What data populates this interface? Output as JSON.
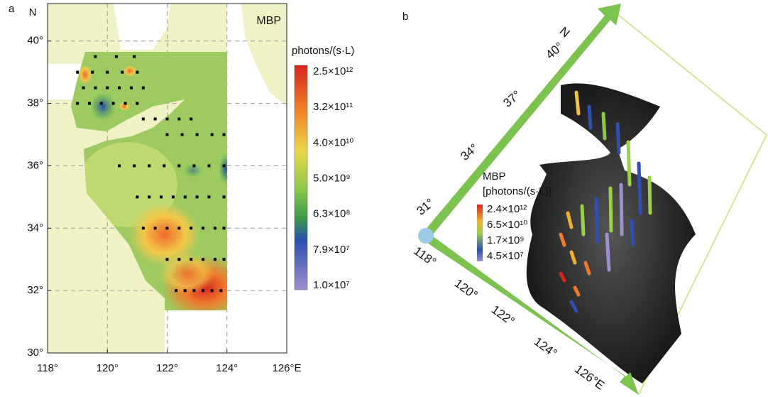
{
  "panel_a": {
    "label": "a",
    "north": "N",
    "title": "MBP",
    "colorbar_title": "photons/(s·L)",
    "colorbar_labels": [
      "2.5×10¹²",
      "3.2×10¹¹",
      "4.0×10¹⁰",
      "5.0×10⁹",
      "6.3×10⁸",
      "7.9×10⁷",
      "1.0×10⁷"
    ],
    "xlim": [
      118,
      126
    ],
    "ylim": [
      30,
      41.2
    ],
    "xticks": [
      {
        "value": 118,
        "label": "118°"
      },
      {
        "value": 120,
        "label": "120°"
      },
      {
        "value": 122,
        "label": "122°"
      },
      {
        "value": 124,
        "label": "124°"
      },
      {
        "value": 126,
        "label": "126°E"
      }
    ],
    "yticks": [
      {
        "value": 30,
        "label": "30°"
      },
      {
        "value": 32,
        "label": "32°"
      },
      {
        "value": 34,
        "label": "34°"
      },
      {
        "value": 36,
        "label": "36°"
      },
      {
        "value": 38,
        "label": "38°"
      },
      {
        "value": 40,
        "label": "40°"
      }
    ],
    "stations": {
      "lon": [
        122.3,
        122.6,
        122.9,
        123.2,
        123.5,
        123.8,
        122.0,
        122.4,
        122.8,
        123.2,
        123.6,
        123.9,
        121.2,
        121.6,
        122.0,
        122.4,
        122.8,
        123.2,
        123.6,
        123.9,
        121.0,
        121.4,
        121.8,
        122.2,
        122.6,
        123.0,
        123.4,
        123.9,
        120.4,
        120.9,
        121.4,
        121.9,
        122.4,
        122.9,
        123.4,
        123.9,
        122.0,
        122.5,
        123.0,
        123.5,
        123.9,
        121.2,
        121.6,
        122.0,
        122.4,
        122.8,
        119.0,
        119.4,
        119.8,
        120.2,
        120.6,
        121.0,
        119.2,
        119.6,
        120.0,
        120.4,
        120.8,
        121.2,
        119.0,
        119.5,
        120.0,
        120.5,
        121.0,
        119.6,
        120.3,
        120.9
      ],
      "lat": [
        32.0,
        32.0,
        32.0,
        32.0,
        32.0,
        32.0,
        33.0,
        33.0,
        33.0,
        33.0,
        33.0,
        33.0,
        34.0,
        34.0,
        34.0,
        34.0,
        34.0,
        34.0,
        34.0,
        34.0,
        35.0,
        35.0,
        35.0,
        35.0,
        35.0,
        35.0,
        35.0,
        35.0,
        36.0,
        36.0,
        36.0,
        36.0,
        36.0,
        36.0,
        36.0,
        36.0,
        37.0,
        37.0,
        37.0,
        37.0,
        37.0,
        37.5,
        37.5,
        37.5,
        37.5,
        37.5,
        38.0,
        38.0,
        38.0,
        38.0,
        38.0,
        38.0,
        38.5,
        38.5,
        38.5,
        38.5,
        38.5,
        38.5,
        39.0,
        39.0,
        39.0,
        39.0,
        39.0,
        39.5,
        39.5,
        39.5
      ]
    }
  },
  "panel_b": {
    "label": "b",
    "north": "N",
    "lat_labels": [
      "40°",
      "37°",
      "34°",
      "31°"
    ],
    "lon_labels": [
      "118°",
      "120°",
      "122°",
      "124°",
      "126°E"
    ],
    "legend_title": "MBP",
    "legend_unit": "[photons/(s·L)]",
    "legend_labels": [
      "2.4×10¹²",
      "6.5×10¹⁰",
      "1.7×10⁹",
      "4.5×10⁷"
    ]
  }
}
